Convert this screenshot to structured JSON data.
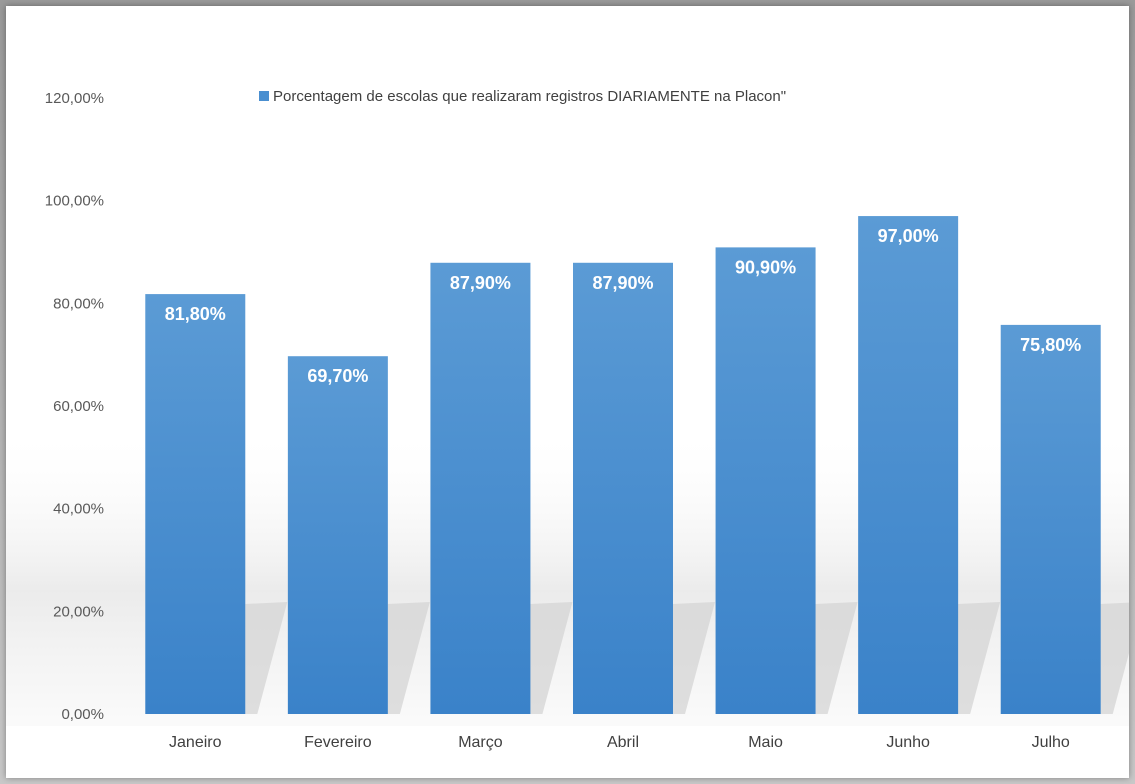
{
  "colors": {
    "bar": "#3f88cc",
    "bar_light": "#5b9bd5",
    "label_text": "#ffffff"
  },
  "chart_data": {
    "type": "bar",
    "categories": [
      "Janeiro",
      "Fevereiro",
      "Março",
      "Abril",
      "Maio",
      "Junho",
      "Julho"
    ],
    "series": [
      {
        "name": "Porcentagem de escolas que realizaram registros DIARIAMENTE na Placon\"",
        "values": [
          81.8,
          69.7,
          87.9,
          87.9,
          90.9,
          97.0,
          75.8
        ],
        "labels": [
          "81,80%",
          "69,70%",
          "87,90%",
          "87,90%",
          "90,90%",
          "97,00%",
          "75,80%"
        ]
      }
    ],
    "ylim": [
      0,
      120
    ],
    "yticks": [
      0,
      20,
      40,
      60,
      80,
      100,
      120
    ],
    "ytick_labels": [
      "0,00%",
      "20,00%",
      "40,00%",
      "60,00%",
      "80,00%",
      "100,00%",
      "120,00%"
    ],
    "legend_position": "top",
    "grid": false
  }
}
